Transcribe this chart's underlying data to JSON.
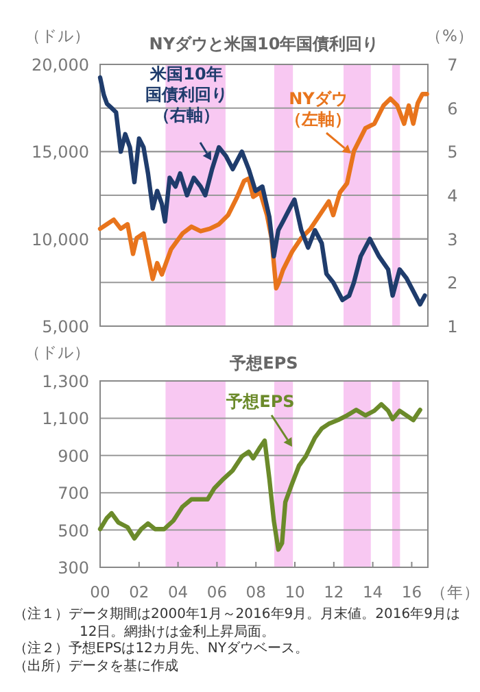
{
  "chart_data": [
    {
      "type": "line",
      "title": "NYダウと米国10年国債利回り",
      "ylabel": "（ドル）",
      "y2label": "（%）",
      "tick_labels": "y",
      "grid": "y",
      "xlim": [
        2000,
        2016.83
      ],
      "ylim": [
        5000,
        20000
      ],
      "yticks": [
        {
          "value": 5000,
          "label": "5,000"
        },
        {
          "value": 10000,
          "label": "10,000"
        },
        {
          "value": 15000,
          "label": "15,000"
        },
        {
          "value": 20000,
          "label": "20,000"
        }
      ],
      "y2lim": [
        1,
        7
      ],
      "y2ticks": [
        1,
        2,
        3,
        4,
        5,
        6,
        7
      ],
      "bands": [
        {
          "axis": "x",
          "from": 2003.36,
          "to": 2006.44,
          "color": "#f8c8f2"
        },
        {
          "axis": "x",
          "from": 2008.94,
          "to": 2009.9,
          "color": "#f8c8f2"
        },
        {
          "axis": "x",
          "from": 2012.5,
          "to": 2013.9,
          "color": "#f8c8f2"
        },
        {
          "axis": "x",
          "from": 2015.0,
          "to": 2015.4,
          "color": "#f8c8f2"
        }
      ],
      "series": [
        {
          "name": "NYダウ（左軸）",
          "color": "#e8741c",
          "x": [
            2000,
            2000.35,
            2000.7,
            2001.06,
            2001.41,
            2001.69,
            2001.88,
            2002.23,
            2002.7,
            2002.93,
            2003.17,
            2003.64,
            2004.23,
            2004.69,
            2005.16,
            2005.63,
            2006.1,
            2006.57,
            2007.04,
            2007.39,
            2007.63,
            2007.86,
            2008.22,
            2008.57,
            2008.8,
            2009.04,
            2009.15,
            2009.39,
            2009.86,
            2010.33,
            2010.8,
            2011.27,
            2011.74,
            2011.97,
            2012.32,
            2012.68,
            2013.03,
            2013.62,
            2014.08,
            2014.55,
            2014.91,
            2015.26,
            2015.61,
            2015.85,
            2016.08,
            2016.31,
            2016.55,
            2016.78
          ],
          "values": [
            10580,
            10840,
            11100,
            10580,
            10840,
            9140,
            10050,
            10310,
            7700,
            8610,
            7960,
            9400,
            10310,
            10700,
            10440,
            10580,
            10840,
            11360,
            12410,
            13320,
            13460,
            12410,
            12670,
            11360,
            10050,
            7170,
            7430,
            8220,
            9270,
            10050,
            10580,
            11360,
            12150,
            11360,
            12670,
            13190,
            15030,
            16340,
            16600,
            17640,
            18040,
            17640,
            16600,
            17640,
            16600,
            17780,
            18300,
            18300
          ]
        },
        {
          "name": "米国10年国債利回り（右軸）",
          "color": "#1f3c6c",
          "axis": "y2",
          "x": [
            2000,
            2000.19,
            2000.35,
            2000.59,
            2000.82,
            2001.06,
            2001.29,
            2001.53,
            2001.76,
            2002.0,
            2002.23,
            2002.46,
            2002.7,
            2002.93,
            2003.17,
            2003.33,
            2003.57,
            2003.87,
            2004.11,
            2004.46,
            2004.81,
            2005.16,
            2005.4,
            2005.75,
            2006.1,
            2006.46,
            2006.81,
            2007.28,
            2007.63,
            2007.98,
            2008.33,
            2008.69,
            2008.92,
            2009.15,
            2009.39,
            2009.74,
            2009.98,
            2010.33,
            2010.68,
            2011.03,
            2011.38,
            2011.62,
            2011.97,
            2012.44,
            2012.79,
            2013.03,
            2013.38,
            2013.85,
            2014.32,
            2014.79,
            2015.02,
            2015.38,
            2015.73,
            2016.08,
            2016.43,
            2016.67
          ],
          "values": [
            6.7,
            6.3,
            6.1,
            6.0,
            5.9,
            5.0,
            5.4,
            5.1,
            4.3,
            5.3,
            5.1,
            4.5,
            3.7,
            4.1,
            3.8,
            3.4,
            4.4,
            4.2,
            4.5,
            4.0,
            4.4,
            4.2,
            4.0,
            4.6,
            5.1,
            4.9,
            4.6,
            5.0,
            4.6,
            4.1,
            4.2,
            3.5,
            2.6,
            3.2,
            3.4,
            3.7,
            3.9,
            3.2,
            2.8,
            3.2,
            2.9,
            2.2,
            2.0,
            1.6,
            1.7,
            2.0,
            2.6,
            3.0,
            2.6,
            2.3,
            1.7,
            2.3,
            2.1,
            1.8,
            1.5,
            1.7
          ]
        }
      ]
    },
    {
      "type": "line",
      "title": "予想EPS",
      "ylabel": "（ドル）",
      "xlabel": "（年）",
      "grid": "y",
      "xlim": [
        2000,
        2016.83
      ],
      "xticks": [
        {
          "value": 2000,
          "label": "00"
        },
        {
          "value": 2002,
          "label": "02"
        },
        {
          "value": 2004,
          "label": "04"
        },
        {
          "value": 2006,
          "label": "06"
        },
        {
          "value": 2008,
          "label": "08"
        },
        {
          "value": 2010,
          "label": "10"
        },
        {
          "value": 2012,
          "label": "12"
        },
        {
          "value": 2014,
          "label": "14"
        },
        {
          "value": 2016,
          "label": "16"
        }
      ],
      "ylim": [
        300,
        1300
      ],
      "yticks": [
        300,
        500,
        700,
        900,
        {
          "value": 1100,
          "label": "1,100"
        },
        {
          "value": 1300,
          "label": "1,300"
        }
      ],
      "bands": [
        {
          "axis": "x",
          "from": 2003.36,
          "to": 2006.44,
          "color": "#f8c8f2"
        },
        {
          "axis": "x",
          "from": 2008.94,
          "to": 2009.9,
          "color": "#f8c8f2"
        },
        {
          "axis": "x",
          "from": 2012.5,
          "to": 2013.9,
          "color": "#f8c8f2"
        },
        {
          "axis": "x",
          "from": 2015.0,
          "to": 2015.4,
          "color": "#f8c8f2"
        }
      ],
      "series": [
        {
          "name": "予想EPS",
          "color": "#6b8a2a",
          "x": [
            2000,
            2000.35,
            2000.59,
            2000.94,
            2001.41,
            2001.76,
            2002.11,
            2002.46,
            2002.82,
            2003.29,
            2003.76,
            2004.23,
            2004.69,
            2005.16,
            2005.52,
            2005.87,
            2006.34,
            2006.81,
            2007.28,
            2007.63,
            2007.86,
            2008.22,
            2008.45,
            2008.69,
            2008.92,
            2009.15,
            2009.34,
            2009.51,
            2009.86,
            2010.21,
            2010.56,
            2011.03,
            2011.38,
            2011.74,
            2012.21,
            2012.68,
            2013.15,
            2013.62,
            2014.08,
            2014.44,
            2014.79,
            2015.02,
            2015.38,
            2015.73,
            2016.08,
            2016.43
          ],
          "values": [
            505,
            565,
            590,
            540,
            515,
            455,
            505,
            535,
            505,
            505,
            550,
            625,
            665,
            665,
            665,
            725,
            775,
            820,
            895,
            920,
            885,
            945,
            980,
            775,
            550,
            395,
            430,
            650,
            750,
            845,
            895,
            995,
            1045,
            1070,
            1090,
            1115,
            1145,
            1115,
            1140,
            1175,
            1140,
            1095,
            1140,
            1115,
            1090,
            1145
          ]
        }
      ],
      "annotations": [
        "（注１）データ期間は2000年1月～2016年9月。月末値。2016年9月は12日。網掛けは金利上昇局面。",
        "（注２）予想EPSは12カ月先、NYダウベース。",
        "（出所）データを基に作成"
      ]
    }
  ]
}
